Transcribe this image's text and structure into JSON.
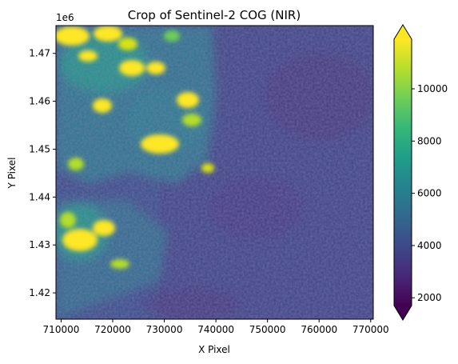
{
  "title": "Crop of Sentinel-2 COG (NIR)",
  "xlabel": "X Pixel",
  "ylabel": "Y Pixel",
  "y_offset_label": "1e6",
  "x_ticks": [
    "710000",
    "720000",
    "730000",
    "740000",
    "750000",
    "760000",
    "770000"
  ],
  "y_ticks": [
    "1.42",
    "1.43",
    "1.44",
    "1.45",
    "1.46",
    "1.47"
  ],
  "colorbar": {
    "colormap": "viridis",
    "ticks": [
      "2000",
      "4000",
      "6000",
      "8000",
      "10000"
    ],
    "extend": "both",
    "colors": [
      "#440154",
      "#482878",
      "#3e4989",
      "#31688e",
      "#26828e",
      "#1f9e89",
      "#35b779",
      "#6ece58",
      "#b5de2b",
      "#fde725"
    ]
  },
  "chart_data": {
    "type": "heatmap",
    "title": "Crop of Sentinel-2 COG (NIR)",
    "xlabel": "X Pixel",
    "ylabel": "Y Pixel",
    "xlim": [
      709000,
      770500
    ],
    "ylim": [
      1414500,
      1475800
    ],
    "clim": [
      1700,
      11900
    ],
    "colormap": "viridis",
    "grid": false,
    "description_values": {
      "bright_regions": [
        {
          "x": 713000,
          "y": 1473000,
          "value": 11500
        },
        {
          "x": 720000,
          "y": 1473500,
          "value": 11000
        },
        {
          "x": 725000,
          "y": 1468000,
          "value": 11000
        },
        {
          "x": 718000,
          "y": 1461500,
          "value": 11000
        },
        {
          "x": 732000,
          "y": 1461000,
          "value": 10500
        },
        {
          "x": 729000,
          "y": 1451500,
          "value": 11500
        },
        {
          "x": 712000,
          "y": 1433000,
          "value": 10500
        },
        {
          "x": 720000,
          "y": 1432000,
          "value": 10000
        }
      ]
    }
  }
}
